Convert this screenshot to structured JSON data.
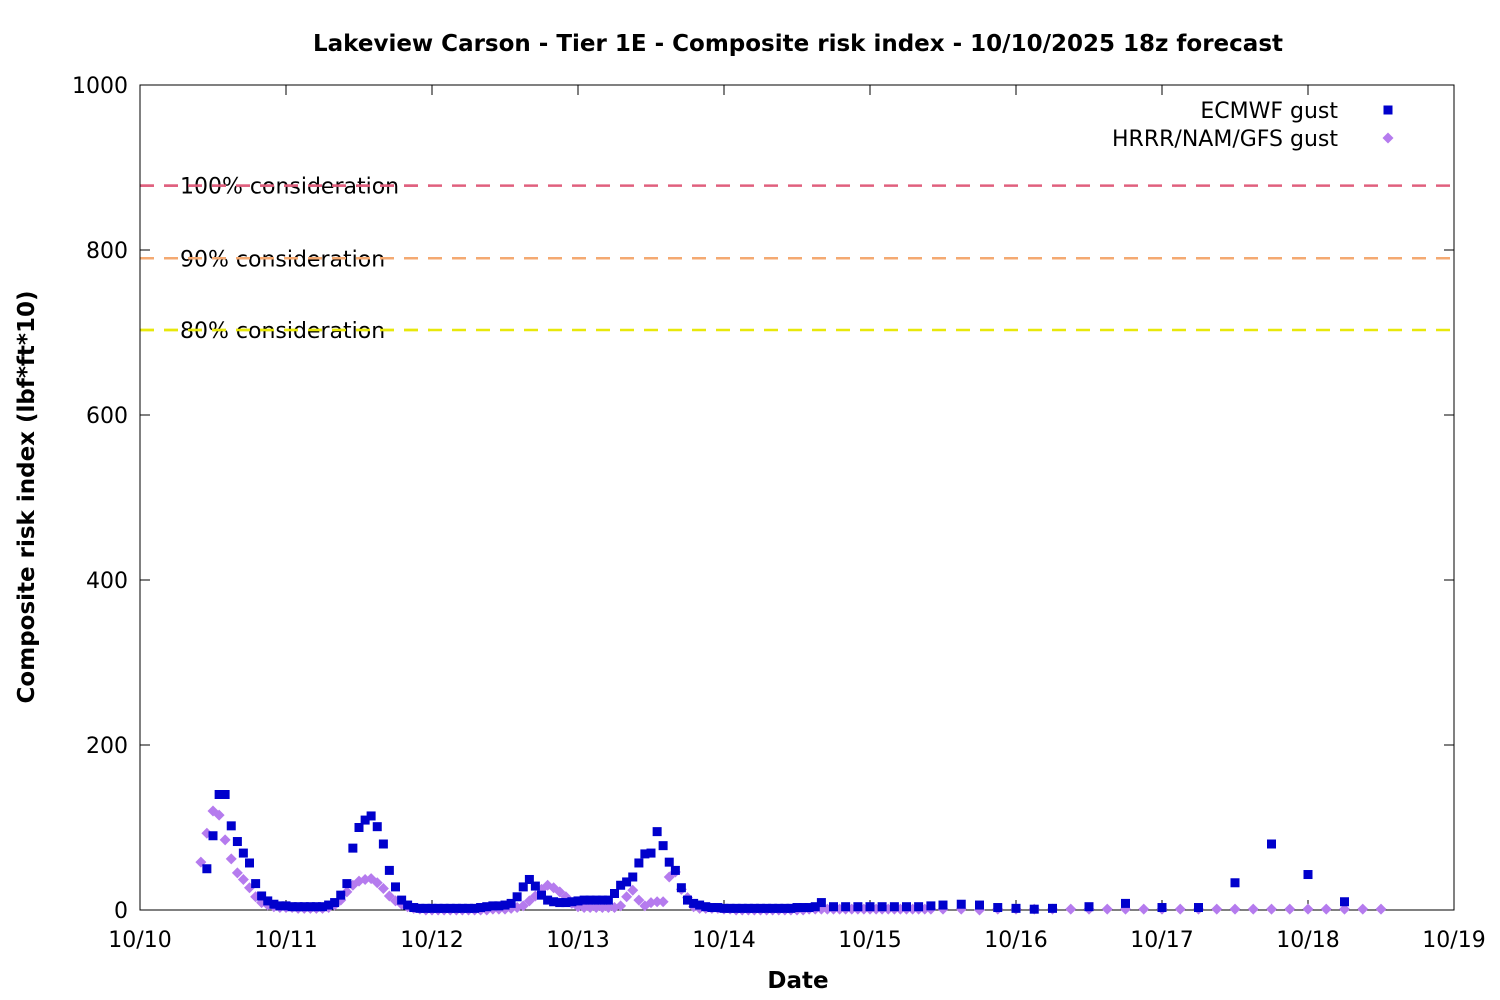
{
  "chart_data": {
    "type": "scatter",
    "title": "Lakeview Carson - Tier 1E - Composite risk index - 10/10/2025 18z forecast",
    "xlabel": "Date",
    "ylabel": "Composite risk index (lbf*ft*10)",
    "x_unit": "days since 10/10 00z",
    "xlim": [
      0,
      9
    ],
    "ylim": [
      0,
      1000
    ],
    "x_ticks": [
      {
        "value": 0,
        "label": "10/10"
      },
      {
        "value": 1,
        "label": "10/11"
      },
      {
        "value": 2,
        "label": "10/12"
      },
      {
        "value": 3,
        "label": "10/13"
      },
      {
        "value": 4,
        "label": "10/14"
      },
      {
        "value": 5,
        "label": "10/15"
      },
      {
        "value": 6,
        "label": "10/16"
      },
      {
        "value": 7,
        "label": "10/17"
      },
      {
        "value": 8,
        "label": "10/18"
      },
      {
        "value": 9,
        "label": "10/19"
      }
    ],
    "y_ticks": [
      {
        "value": 0,
        "label": "0"
      },
      {
        "value": 200,
        "label": "200"
      },
      {
        "value": 400,
        "label": "400"
      },
      {
        "value": 600,
        "label": "600"
      },
      {
        "value": 800,
        "label": "800"
      },
      {
        "value": 1000,
        "label": "1000"
      }
    ],
    "grid": false,
    "legend_position": "top-right",
    "thresholds": [
      {
        "label": "100% consideration",
        "value": 878,
        "color": "#e0607e"
      },
      {
        "label": "90% consideration",
        "value": 790,
        "color": "#f4a971"
      },
      {
        "label": "80% consideration",
        "value": 703,
        "color": "#e8e80a"
      }
    ],
    "series": [
      {
        "name": "ECMWF gust",
        "marker": "square",
        "color": "#0000cc",
        "x": [
          0.458,
          0.5,
          0.542,
          0.583,
          0.625,
          0.667,
          0.708,
          0.75,
          0.792,
          0.833,
          0.875,
          0.917,
          0.958,
          1.0,
          1.042,
          1.083,
          1.125,
          1.167,
          1.208,
          1.25,
          1.292,
          1.333,
          1.375,
          1.417,
          1.458,
          1.5,
          1.542,
          1.583,
          1.625,
          1.667,
          1.708,
          1.75,
          1.792,
          1.833,
          1.875,
          1.917,
          1.958,
          2.0,
          2.042,
          2.083,
          2.125,
          2.167,
          2.208,
          2.25,
          2.292,
          2.333,
          2.375,
          2.417,
          2.458,
          2.5,
          2.542,
          2.583,
          2.625,
          2.667,
          2.708,
          2.75,
          2.792,
          2.833,
          2.875,
          2.917,
          2.958,
          3.0,
          3.042,
          3.083,
          3.125,
          3.167,
          3.208,
          3.25,
          3.292,
          3.333,
          3.375,
          3.417,
          3.458,
          3.5,
          3.542,
          3.583,
          3.625,
          3.667,
          3.708,
          3.75,
          3.792,
          3.833,
          3.875,
          3.917,
          3.958,
          4.0,
          4.042,
          4.083,
          4.125,
          4.167,
          4.208,
          4.25,
          4.292,
          4.333,
          4.375,
          4.417,
          4.458,
          4.5,
          4.542,
          4.583,
          4.625,
          4.667,
          4.75,
          4.833,
          4.917,
          5.0,
          5.083,
          5.167,
          5.25,
          5.333,
          5.417,
          5.5,
          5.625,
          5.75,
          5.875,
          6.0,
          6.125,
          6.25,
          6.5,
          6.75,
          7.0,
          7.25,
          7.5,
          7.75,
          8.0,
          8.25
        ],
        "y": [
          50,
          90,
          140,
          140,
          102,
          83,
          69,
          57,
          32,
          17,
          11,
          7,
          5,
          5,
          4,
          4,
          4,
          4,
          4,
          4,
          6,
          9,
          18,
          32,
          75,
          100,
          109,
          114,
          101,
          80,
          48,
          28,
          12,
          6,
          3,
          2,
          2,
          2,
          2,
          2,
          2,
          2,
          2,
          2,
          2,
          3,
          4,
          5,
          5,
          6,
          8,
          16,
          28,
          37,
          29,
          18,
          12,
          10,
          9,
          9,
          10,
          11,
          12,
          12,
          12,
          12,
          12,
          20,
          30,
          34,
          40,
          57,
          68,
          69,
          95,
          78,
          58,
          48,
          27,
          12,
          8,
          6,
          4,
          3,
          3,
          2,
          2,
          2,
          2,
          2,
          2,
          2,
          2,
          2,
          2,
          2,
          2,
          3,
          3,
          3,
          4,
          9,
          4,
          4,
          4,
          4,
          4,
          4,
          4,
          4,
          5,
          6,
          7,
          6,
          3,
          2,
          1,
          2,
          4,
          8,
          3,
          3,
          33,
          80,
          43,
          10
        ]
      },
      {
        "name": "HRRR/NAM/GFS gust",
        "marker": "diamond",
        "color": "#b57bee",
        "x": [
          0.417,
          0.458,
          0.5,
          0.542,
          0.583,
          0.625,
          0.667,
          0.708,
          0.75,
          0.792,
          0.833,
          0.875,
          0.917,
          0.958,
          1.0,
          1.042,
          1.083,
          1.125,
          1.167,
          1.208,
          1.25,
          1.292,
          1.333,
          1.375,
          1.417,
          1.458,
          1.5,
          1.542,
          1.583,
          1.625,
          1.667,
          1.708,
          1.75,
          1.792,
          1.833,
          1.875,
          1.917,
          1.958,
          2.0,
          2.042,
          2.083,
          2.125,
          2.167,
          2.208,
          2.25,
          2.292,
          2.333,
          2.375,
          2.417,
          2.458,
          2.5,
          2.542,
          2.583,
          2.625,
          2.667,
          2.708,
          2.75,
          2.792,
          2.833,
          2.875,
          2.917,
          2.958,
          3.0,
          3.042,
          3.083,
          3.125,
          3.167,
          3.208,
          3.25,
          3.292,
          3.333,
          3.375,
          3.417,
          3.458,
          3.5,
          3.542,
          3.583,
          3.625,
          3.667,
          3.708,
          3.75,
          3.792,
          3.833,
          3.875,
          3.917,
          3.958,
          4.0,
          4.042,
          4.083,
          4.125,
          4.167,
          4.208,
          4.25,
          4.292,
          4.333,
          4.375,
          4.417,
          4.458,
          4.5,
          4.542,
          4.583,
          4.625,
          4.667,
          4.708,
          4.75,
          4.792,
          4.833,
          4.875,
          4.917,
          4.958,
          5.0,
          5.042,
          5.083,
          5.125,
          5.167,
          5.208,
          5.25,
          5.292,
          5.333,
          5.375,
          5.417,
          5.5,
          5.625,
          5.75,
          5.875,
          6.0,
          6.125,
          6.25,
          6.375,
          6.5,
          6.625,
          6.75,
          6.875,
          7.0,
          7.125,
          7.25,
          7.375,
          7.5,
          7.625,
          7.75,
          7.875,
          8.0,
          8.125,
          8.25,
          8.375,
          8.5
        ],
        "y": [
          58,
          93,
          120,
          115,
          85,
          62,
          45,
          37,
          27,
          16,
          9,
          6,
          4,
          3,
          3,
          3,
          2,
          2,
          2,
          2,
          2,
          3,
          6,
          12,
          22,
          30,
          35,
          37,
          38,
          33,
          26,
          17,
          11,
          7,
          4,
          2,
          1,
          0,
          0,
          0,
          0,
          0,
          0,
          0,
          0,
          0,
          0,
          0,
          1,
          1,
          1,
          2,
          3,
          5,
          11,
          17,
          25,
          30,
          27,
          22,
          16,
          8,
          4,
          3,
          3,
          3,
          3,
          3,
          3,
          5,
          16,
          24,
          12,
          5,
          9,
          10,
          10,
          40,
          46,
          25,
          15,
          4,
          2,
          2,
          2,
          2,
          1,
          1,
          0,
          0,
          0,
          0,
          0,
          0,
          0,
          0,
          0,
          0,
          0,
          0,
          1,
          1,
          1,
          1,
          1,
          1,
          1,
          1,
          1,
          1,
          1,
          1,
          1,
          1,
          1,
          1,
          1,
          1,
          1,
          1,
          1,
          1,
          1,
          0,
          1,
          1,
          1,
          1,
          1,
          1,
          1,
          1,
          1,
          1,
          1,
          1,
          1,
          1,
          1,
          1,
          1,
          1,
          1,
          1,
          1,
          1
        ]
      }
    ]
  }
}
